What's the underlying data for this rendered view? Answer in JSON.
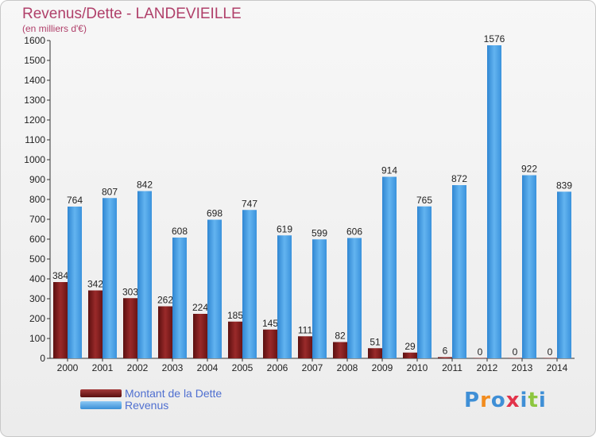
{
  "header": {
    "title": "Revenus/Dette - LANDEVIEILLE",
    "subtitle": "(en milliers d'€)"
  },
  "legend": {
    "items": [
      {
        "label": "Montant de la Dette",
        "color": "#7a1a1a"
      },
      {
        "label": "Revenus",
        "color": "#4aa3e6"
      }
    ]
  },
  "logo": {
    "text": "Proxiti",
    "letters": [
      "P",
      "r",
      "o",
      "x",
      "i",
      "t",
      "i"
    ],
    "colors": [
      "#3f8fd6",
      "#f28c1e",
      "#3f8fd6",
      "#e2334a",
      "#3f8fd6",
      "#8dc63f",
      "#3f8fd6"
    ]
  },
  "chart_data": {
    "type": "bar",
    "categories": [
      "2000",
      "2001",
      "2002",
      "2003",
      "2004",
      "2005",
      "2006",
      "2007",
      "2008",
      "2009",
      "2010",
      "2011",
      "2012",
      "2013",
      "2014"
    ],
    "series": [
      {
        "name": "Montant de la Dette",
        "color": "#7a1a1a",
        "values": [
          384,
          342,
          303,
          262,
          224,
          185,
          145,
          111,
          82,
          51,
          29,
          6,
          0,
          0,
          0
        ]
      },
      {
        "name": "Revenus",
        "color": "#4aa3e6",
        "values": [
          764,
          807,
          842,
          608,
          698,
          747,
          619,
          599,
          606,
          914,
          765,
          872,
          1576,
          922,
          839
        ]
      }
    ],
    "yticks": [
      0,
      100,
      200,
      300,
      400,
      500,
      600,
      700,
      800,
      900,
      1000,
      1100,
      1200,
      1300,
      1400,
      1500,
      1600
    ],
    "ylim": [
      0,
      1600
    ],
    "grid": false,
    "legend_position": "bottom-left"
  }
}
